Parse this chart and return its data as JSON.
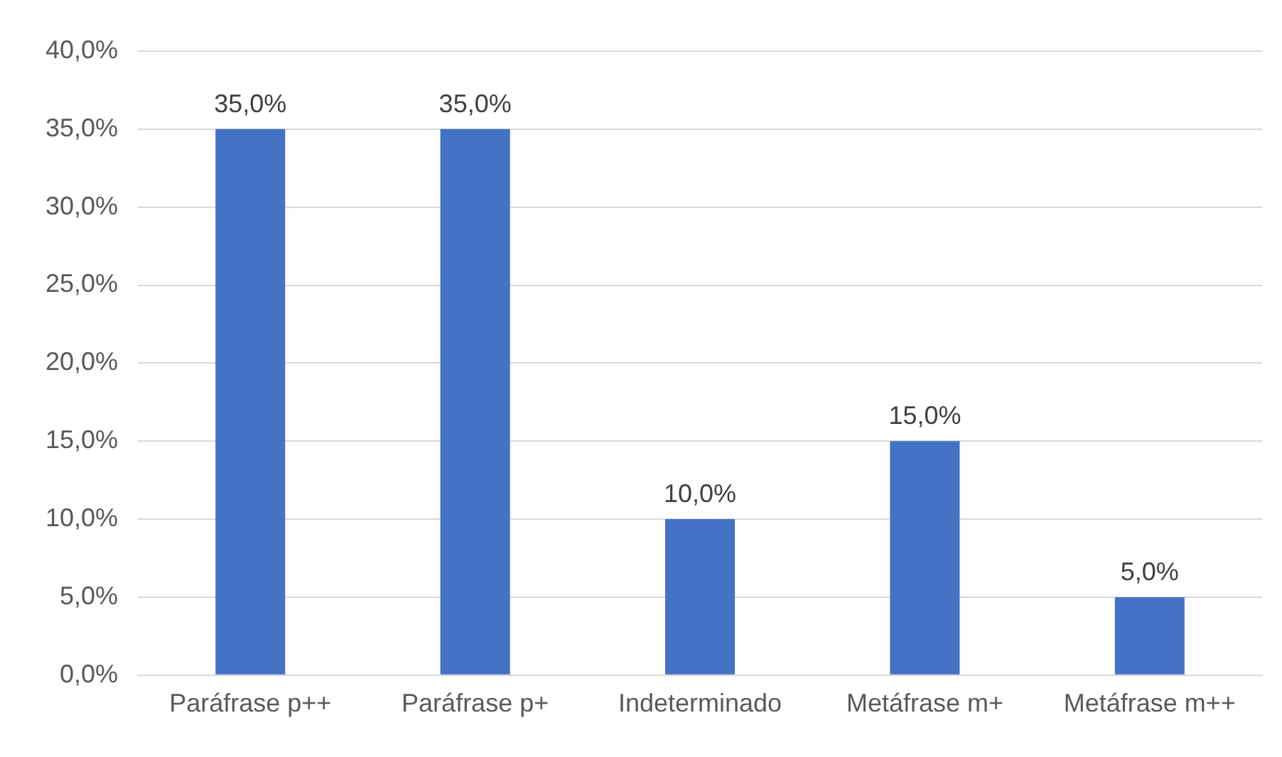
{
  "chart_data": {
    "type": "bar",
    "categories": [
      "Paráfrase p++",
      "Paráfrase p+",
      "Indeterminado",
      "Metáfrase m+",
      "Metáfrase m++"
    ],
    "values": [
      35,
      35,
      10,
      15,
      5
    ],
    "color": "#4472c4",
    "value_labels": [
      "35,0%",
      "35,0%",
      "10,0%",
      "15,0%",
      "5,0%"
    ],
    "ylim": [
      0,
      40
    ],
    "yticks": [
      {
        "value": 0,
        "label": "0,0%"
      },
      {
        "value": 5,
        "label": "5,0%"
      },
      {
        "value": 10,
        "label": "10,0%"
      },
      {
        "value": 15,
        "label": "15,0%"
      },
      {
        "value": 20,
        "label": "20,0%"
      },
      {
        "value": 25,
        "label": "25,0%"
      },
      {
        "value": 30,
        "label": "30,0%"
      },
      {
        "value": 35,
        "label": "35,0%"
      },
      {
        "value": 40,
        "label": "40,0%"
      }
    ],
    "grid": "y",
    "legend": false
  }
}
